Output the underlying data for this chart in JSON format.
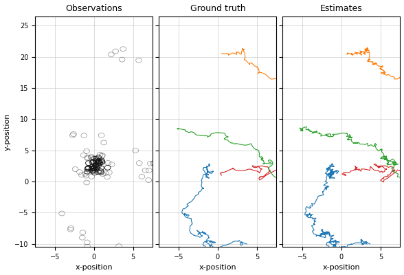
{
  "title_obs": "Observations",
  "title_gt": "Ground truth",
  "title_est": "Estimates",
  "xlabel": "x-position",
  "ylabel": "y-position",
  "xlim": [
    -7.5,
    7.5
  ],
  "ylim": [
    -10.5,
    26.5
  ],
  "xticks": [
    -5,
    0,
    5
  ],
  "yticks": [
    -10,
    -5,
    0,
    5,
    10,
    15,
    20,
    25
  ],
  "colors": {
    "orange": "#ff7f0e",
    "green": "#2ca02c",
    "blue": "#1f77b4",
    "red": "#d62728"
  },
  "bg_color": "#ffffff",
  "grid_color": "#cccccc",
  "figsize": [
    5.88,
    4.0
  ],
  "dpi": 100
}
